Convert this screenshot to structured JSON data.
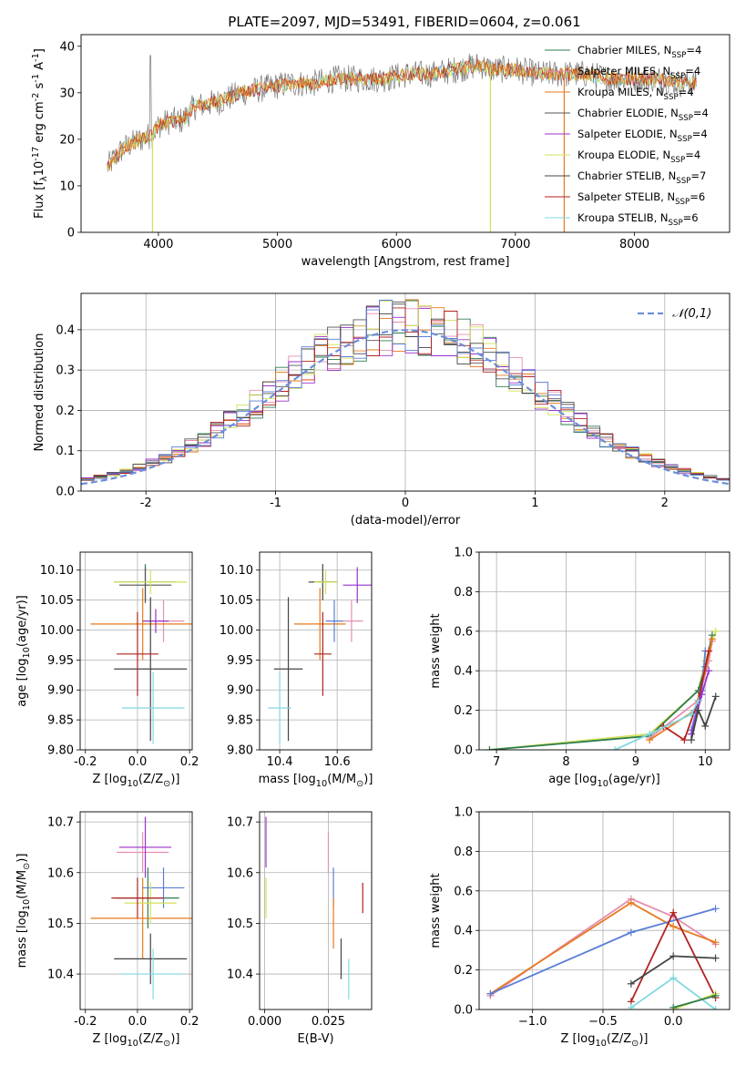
{
  "figure": {
    "title": "PLATE=2097, MJD=53491, FIBERID=0604, z=0.061"
  },
  "colors": {
    "chabrier_miles": "#2e7d4f",
    "salpeter_miles": "#e58fb0",
    "kroupa_miles": "#e87a1e",
    "chabrier_elodie": "#555555",
    "salpeter_elodie": "#9932cc",
    "kroupa_elodie": "#d4e157",
    "chabrier_stelib": "#444444",
    "salpeter_stelib": "#b22222",
    "kroupa_stelib": "#7fd8e0",
    "gaussian": "#6a8fdb",
    "spectrum": "#777777",
    "blue_series": "#5b7fd6"
  },
  "chart_data": [
    {
      "id": "spectrum",
      "type": "line",
      "title": "PLATE=2097, MJD=53491, FIBERID=0604, z=0.061",
      "xlabel": "wavelength [Angstrom, rest frame]",
      "ylabel": "Flux [f_λ10^-17 erg cm^-2 s^-1 A^-1]",
      "xlim": [
        3350,
        8800
      ],
      "ylim": [
        0,
        42.5
      ],
      "xticks": [
        4000,
        5000,
        6000,
        7000,
        8000
      ],
      "yticks": [
        0,
        10,
        20,
        30,
        40
      ],
      "legend_position": "top-right",
      "legend": [
        "Chabrier MILES, N_SSP=4",
        "Salpeter MILES, N_SSP=4",
        "Kroupa MILES, N_SSP=4",
        "Chabrier ELODIE, N_SSP=4",
        "Salpeter ELODIE, N_SSP=4",
        "Kroupa ELODIE, N_SSP=4",
        "Chabrier STELIB, N_SSP=7",
        "Salpeter STELIB, N_SSP=6",
        "Kroupa STELIB, N_SSP=6"
      ],
      "spectrum_shape": {
        "x": [
          3570,
          3700,
          3850,
          3950,
          4000,
          4100,
          4200,
          4300,
          4500,
          4700,
          4900,
          5100,
          5300,
          5500,
          5700,
          5900,
          6100,
          6300,
          6500,
          6700,
          6800,
          7000,
          7200,
          7400,
          7600,
          7800,
          8000,
          8200,
          8400,
          8520
        ],
        "y": [
          14,
          18,
          20,
          21,
          23,
          24,
          24,
          27,
          28,
          30,
          31,
          32,
          32,
          33,
          33,
          33,
          34,
          34,
          35,
          36,
          35,
          35,
          34,
          34,
          34,
          33,
          33,
          33,
          32,
          32
        ]
      },
      "grid": false
    },
    {
      "id": "residuals",
      "type": "line",
      "xlabel": "(data-model)/error",
      "ylabel": "Normed distribution",
      "xlim": [
        -2.5,
        2.5
      ],
      "ylim": [
        0,
        0.49
      ],
      "xticks": [
        -2,
        -1,
        0,
        1,
        2
      ],
      "yticks": [
        0.0,
        0.1,
        0.2,
        0.3,
        0.4
      ],
      "legend": [
        "𝒩(0,1)"
      ],
      "legend_position": "top-right",
      "grid": true,
      "gaussian": {
        "mean": 0,
        "sigma": 1
      },
      "bin_width": 0.1
    },
    {
      "id": "age-vs-Z",
      "type": "scatter",
      "xlabel": "Z [log10(Z/Z☉)]",
      "ylabel": "age  [log10(age/yr)]",
      "xlim": [
        -0.22,
        0.21
      ],
      "ylim": [
        9.8,
        10.13
      ],
      "xticks": [
        -0.2,
        0.0,
        0.2
      ],
      "yticks": [
        9.8,
        9.85,
        9.9,
        9.95,
        10.0,
        10.05,
        10.1
      ],
      "points": [
        {
          "x": 0.03,
          "y": 10.08,
          "xerr": 0.12,
          "yerr": 0.03,
          "color": "chabrier_miles"
        },
        {
          "x": 0.1,
          "y": 10.015,
          "xerr": 0.08,
          "yerr": 0.035,
          "color": "salpeter_miles"
        },
        {
          "x": 0.02,
          "y": 10.01,
          "xerr": 0.2,
          "yerr": 0.06,
          "color": "kroupa_miles"
        },
        {
          "x": 0.03,
          "y": 10.075,
          "xerr": 0.1,
          "yerr": 0.03,
          "color": "chabrier_elodie"
        },
        {
          "x": 0.07,
          "y": 10.015,
          "xerr": 0.05,
          "yerr": 0.02,
          "color": "salpeter_elodie"
        },
        {
          "x": 0.05,
          "y": 10.08,
          "xerr": 0.14,
          "yerr": 0.02,
          "color": "kroupa_elodie"
        },
        {
          "x": 0.05,
          "y": 9.935,
          "xerr": 0.14,
          "yerr": 0.12,
          "color": "chabrier_stelib"
        },
        {
          "x": 0.0,
          "y": 9.96,
          "xerr": 0.08,
          "yerr": 0.07,
          "color": "salpeter_stelib"
        },
        {
          "x": 0.06,
          "y": 9.87,
          "xerr": 0.12,
          "yerr": 0.06,
          "color": "kroupa_stelib"
        }
      ],
      "grid": true
    },
    {
      "id": "age-vs-mass",
      "type": "scatter",
      "xlabel": "mass [log10(M/M☉)]",
      "ylabel": "",
      "xlim": [
        10.33,
        10.72
      ],
      "ylim": [
        9.8,
        10.13
      ],
      "xticks": [
        10.4,
        10.6
      ],
      "yticks": [
        9.8,
        9.85,
        9.9,
        9.95,
        10.0,
        10.05,
        10.1
      ],
      "points": [
        {
          "x": 10.55,
          "y": 10.08,
          "xerr": 0.04,
          "yerr": 0.03,
          "color": "chabrier_miles"
        },
        {
          "x": 10.65,
          "y": 10.015,
          "xerr": 0.04,
          "yerr": 0.035,
          "color": "salpeter_miles"
        },
        {
          "x": 10.54,
          "y": 10.01,
          "xerr": 0.09,
          "yerr": 0.06,
          "color": "kroupa_miles"
        },
        {
          "x": 10.55,
          "y": 10.08,
          "xerr": 0.05,
          "yerr": 0.03,
          "color": "chabrier_elodie"
        },
        {
          "x": 10.67,
          "y": 10.075,
          "xerr": 0.05,
          "yerr": 0.03,
          "color": "salpeter_elodie"
        },
        {
          "x": 10.56,
          "y": 10.08,
          "xerr": 0.04,
          "yerr": 0.02,
          "color": "kroupa_elodie"
        },
        {
          "x": 10.43,
          "y": 9.935,
          "xerr": 0.05,
          "yerr": 0.12,
          "color": "chabrier_stelib"
        },
        {
          "x": 10.55,
          "y": 9.96,
          "xerr": 0.03,
          "yerr": 0.07,
          "color": "salpeter_stelib"
        },
        {
          "x": 10.4,
          "y": 9.87,
          "xerr": 0.04,
          "yerr": 0.06,
          "color": "kroupa_stelib"
        },
        {
          "x": 10.59,
          "y": 10.015,
          "xerr": 0.03,
          "yerr": 0.035,
          "color": "blue_series"
        }
      ],
      "grid": true
    },
    {
      "id": "mass-weight-vs-age",
      "type": "line",
      "xlabel": "age  [log10(age/yr)]",
      "ylabel": "mass weight",
      "xlim": [
        6.75,
        10.35
      ],
      "ylim": [
        0,
        1.0
      ],
      "xticks": [
        7,
        8,
        9,
        10
      ],
      "yticks": [
        0.0,
        0.2,
        0.4,
        0.6,
        0.8,
        1.0
      ],
      "series": [
        {
          "color": "kroupa_elodie",
          "x": [
            6.9,
            9.2,
            9.9,
            10.0,
            10.15
          ],
          "y": [
            0.0,
            0.08,
            0.3,
            0.45,
            0.6
          ]
        },
        {
          "color": "chabrier_miles",
          "x": [
            6.9,
            9.2,
            9.9,
            10.0,
            10.1
          ],
          "y": [
            0.0,
            0.07,
            0.3,
            0.42,
            0.58
          ]
        },
        {
          "color": "salpeter_miles",
          "x": [
            9.2,
            9.9,
            10.05,
            10.1
          ],
          "y": [
            0.06,
            0.25,
            0.45,
            0.55
          ]
        },
        {
          "color": "kroupa_miles",
          "x": [
            9.2,
            9.85,
            10.0,
            10.1
          ],
          "y": [
            0.05,
            0.2,
            0.4,
            0.56
          ]
        },
        {
          "color": "blue_series",
          "x": [
            9.8,
            9.95,
            10.0
          ],
          "y": [
            0.1,
            0.3,
            0.5
          ]
        },
        {
          "color": "salpeter_elodie",
          "x": [
            9.8,
            9.95,
            10.05
          ],
          "y": [
            0.08,
            0.28,
            0.4
          ]
        },
        {
          "color": "chabrier_stelib",
          "x": [
            9.8,
            9.9,
            10.0,
            10.15
          ],
          "y": [
            0.05,
            0.2,
            0.12,
            0.27
          ]
        },
        {
          "color": "salpeter_stelib",
          "x": [
            9.4,
            9.7,
            9.9,
            10.05
          ],
          "y": [
            0.12,
            0.05,
            0.25,
            0.5
          ]
        },
        {
          "color": "kroupa_stelib",
          "x": [
            8.7,
            9.2,
            9.8,
            9.9
          ],
          "y": [
            0.0,
            0.08,
            0.18,
            0.25
          ]
        }
      ],
      "grid": true
    },
    {
      "id": "mass-vs-Z",
      "type": "scatter",
      "xlabel": "Z [log10(Z/Z☉)]",
      "ylabel": "mass [log10(M/M☉)]",
      "xlim": [
        -0.22,
        0.21
      ],
      "ylim": [
        10.33,
        10.72
      ],
      "xticks": [
        -0.2,
        0.0,
        0.2
      ],
      "yticks": [
        10.4,
        10.5,
        10.6,
        10.7
      ],
      "points": [
        {
          "x": 0.04,
          "y": 10.55,
          "xerr": 0.12,
          "yerr": 0.06,
          "color": "chabrier_miles"
        },
        {
          "x": 0.02,
          "y": 10.64,
          "xerr": 0.1,
          "yerr": 0.04,
          "color": "salpeter_miles"
        },
        {
          "x": 0.02,
          "y": 10.51,
          "xerr": 0.2,
          "yerr": 0.08,
          "color": "kroupa_miles"
        },
        {
          "x": 0.1,
          "y": 10.57,
          "xerr": 0.08,
          "yerr": 0.04,
          "color": "blue_series"
        },
        {
          "x": 0.03,
          "y": 10.65,
          "xerr": 0.1,
          "yerr": 0.06,
          "color": "salpeter_elodie"
        },
        {
          "x": 0.05,
          "y": 10.54,
          "xerr": 0.1,
          "yerr": 0.04,
          "color": "kroupa_elodie"
        },
        {
          "x": 0.05,
          "y": 10.43,
          "xerr": 0.14,
          "yerr": 0.05,
          "color": "chabrier_stelib"
        },
        {
          "x": 0.0,
          "y": 10.55,
          "xerr": 0.1,
          "yerr": 0.04,
          "color": "salpeter_stelib"
        },
        {
          "x": 0.06,
          "y": 10.4,
          "xerr": 0.12,
          "yerr": 0.05,
          "color": "kroupa_stelib"
        }
      ],
      "grid": true
    },
    {
      "id": "mass-vs-EBV",
      "type": "scatter",
      "xlabel": "E(B-V)",
      "ylabel": "",
      "xlim": [
        -0.002,
        0.042
      ],
      "ylim": [
        10.33,
        10.72
      ],
      "xticks": [
        0.0,
        0.025
      ],
      "yticks": [
        10.4,
        10.5,
        10.6,
        10.7
      ],
      "points": [
        {
          "x": 0.0005,
          "y": 10.66,
          "yerr": 0.05,
          "color": "salpeter_elodie"
        },
        {
          "x": 0.0005,
          "y": 10.55,
          "yerr": 0.04,
          "color": "kroupa_elodie"
        },
        {
          "x": 0.025,
          "y": 10.64,
          "yerr": 0.04,
          "color": "salpeter_miles"
        },
        {
          "x": 0.027,
          "y": 10.57,
          "yerr": 0.04,
          "color": "blue_series"
        },
        {
          "x": 0.027,
          "y": 10.5,
          "yerr": 0.05,
          "color": "kroupa_miles"
        },
        {
          "x": 0.03,
          "y": 10.43,
          "yerr": 0.04,
          "color": "chabrier_stelib"
        },
        {
          "x": 0.033,
          "y": 10.39,
          "yerr": 0.04,
          "color": "kroupa_stelib"
        },
        {
          "x": 0.0385,
          "y": 10.55,
          "yerr": 0.03,
          "color": "salpeter_stelib"
        }
      ],
      "grid": true
    },
    {
      "id": "mass-weight-vs-Z",
      "type": "line",
      "xlabel": "Z [log10(Z/Z☉)]",
      "ylabel": "mass weight",
      "xlim": [
        -1.38,
        0.4
      ],
      "ylim": [
        0,
        1.0
      ],
      "xticks": [
        -1.0,
        -0.5,
        0.0
      ],
      "yticks": [
        0.0,
        0.2,
        0.4,
        0.6,
        0.8,
        1.0
      ],
      "series": [
        {
          "color": "salpeter_miles",
          "x": [
            -1.3,
            -0.3,
            0.0,
            0.3
          ],
          "y": [
            0.07,
            0.56,
            0.47,
            0.33
          ]
        },
        {
          "color": "kroupa_miles",
          "x": [
            -1.3,
            -0.3,
            0.0,
            0.3
          ],
          "y": [
            0.08,
            0.54,
            0.42,
            0.34
          ]
        },
        {
          "color": "blue_series",
          "x": [
            -1.3,
            -0.3,
            0.3
          ],
          "y": [
            0.08,
            0.39,
            0.51
          ]
        },
        {
          "color": "salpeter_stelib",
          "x": [
            -0.3,
            0.0,
            0.3
          ],
          "y": [
            0.04,
            0.49,
            0.06
          ]
        },
        {
          "color": "chabrier_stelib",
          "x": [
            -0.3,
            0.0,
            0.3
          ],
          "y": [
            0.13,
            0.27,
            0.26
          ]
        },
        {
          "color": "kroupa_stelib",
          "x": [
            -0.3,
            0.0,
            0.3
          ],
          "y": [
            0.01,
            0.16,
            0.0
          ]
        },
        {
          "color": "kroupa_elodie",
          "x": [
            0.0,
            0.3
          ],
          "y": [
            0.0,
            0.08
          ]
        },
        {
          "color": "chabrier_miles",
          "x": [
            0.0,
            0.3
          ],
          "y": [
            0.01,
            0.07
          ]
        }
      ],
      "grid": true
    }
  ]
}
